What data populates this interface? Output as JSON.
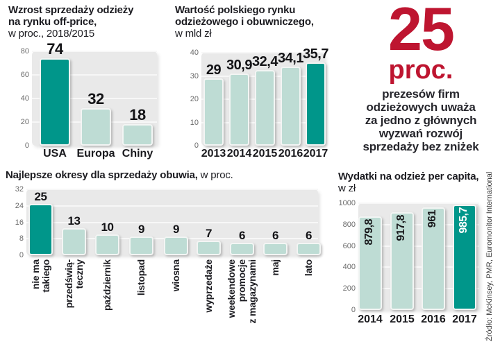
{
  "colors": {
    "accent_teal": "#00968a",
    "light_teal": "#bedcd4",
    "plot_bg": "#e9e9e9",
    "gridline": "#f7f7f7",
    "highlight_red": "#be1530",
    "text_dark": "#1c1c21",
    "axis_gray": "#6b6b6b"
  },
  "highlight_panel": {
    "number": "25",
    "unit": "proc.",
    "text": "prezesów firm\nodzieżowych uważa\nza jedno z głównych\nwyzwań rozwój\nsprzedaży bez zniżek"
  },
  "source_note": "Źródło: McKinsey, PMR, Euromonitor International",
  "chart_data": [
    {
      "id": "offprice",
      "type": "bar",
      "title_bold": "Wzrost sprzedaży odzieży\nna rynku off-price,",
      "title_rest": "\nw proc., 2018/2015",
      "categories": [
        "USA",
        "Europa",
        "Chiny"
      ],
      "values": [
        74,
        32,
        18
      ],
      "value_labels": [
        "74",
        "32",
        "18"
      ],
      "ylim": [
        0,
        80
      ],
      "yticks": [
        80,
        60,
        40,
        20,
        0
      ],
      "highlight_index": 0,
      "grid": true,
      "unit": "proc."
    },
    {
      "id": "market",
      "type": "bar",
      "title_bold": "Wartość polskiego rynku\nodzieżowego i obuwniczego,",
      "title_rest": "\nw mld zł",
      "categories": [
        "2013",
        "2014",
        "2015",
        "2016",
        "2017"
      ],
      "values": [
        29,
        30.9,
        32.4,
        34.1,
        35.7
      ],
      "value_labels": [
        "29",
        "30,9",
        "32,4",
        "34,1",
        "35,7"
      ],
      "ylim": [
        0,
        40
      ],
      "yticks": [
        40,
        30,
        20,
        10,
        0
      ],
      "highlight_index": 4,
      "grid": true,
      "unit": "mld zł"
    },
    {
      "id": "periods",
      "type": "bar",
      "title_bold": "Najlepsze okresy dla sprzedaży obuwia,",
      "title_rest": " w proc.",
      "categories": [
        "nie ma\ntakiego",
        "przedświą-\nteczny",
        "październik",
        "listopad",
        "wiosna",
        "wyprzedaże",
        "weekendowe\npromocje\nz magazynami",
        "maj",
        "lato"
      ],
      "values": [
        25,
        13,
        10,
        9,
        9,
        7,
        6,
        6,
        6
      ],
      "value_labels": [
        "25",
        "13",
        "10",
        "9",
        "9",
        "7",
        "6",
        "6",
        "6"
      ],
      "ylim": [
        0,
        32
      ],
      "yticks": [
        32,
        24,
        16,
        8,
        0
      ],
      "highlight_index": 0,
      "grid": true,
      "unit": "proc.",
      "x_labels_rotated": true
    },
    {
      "id": "percapita",
      "type": "bar",
      "title_bold": "Wydatki na odzież per capita,",
      "title_rest": "\nw zł",
      "categories": [
        "2014",
        "2015",
        "2016",
        "2017"
      ],
      "values": [
        879.8,
        917.8,
        961,
        985.7
      ],
      "value_labels": [
        "879,8",
        "917,8",
        "961",
        "985,7"
      ],
      "ylim": [
        0,
        1000
      ],
      "yticks": [
        1000,
        800,
        600,
        400,
        200,
        0
      ],
      "highlight_index": 3,
      "grid": true,
      "unit": "zł",
      "value_labels_inside_rotated": true
    }
  ]
}
